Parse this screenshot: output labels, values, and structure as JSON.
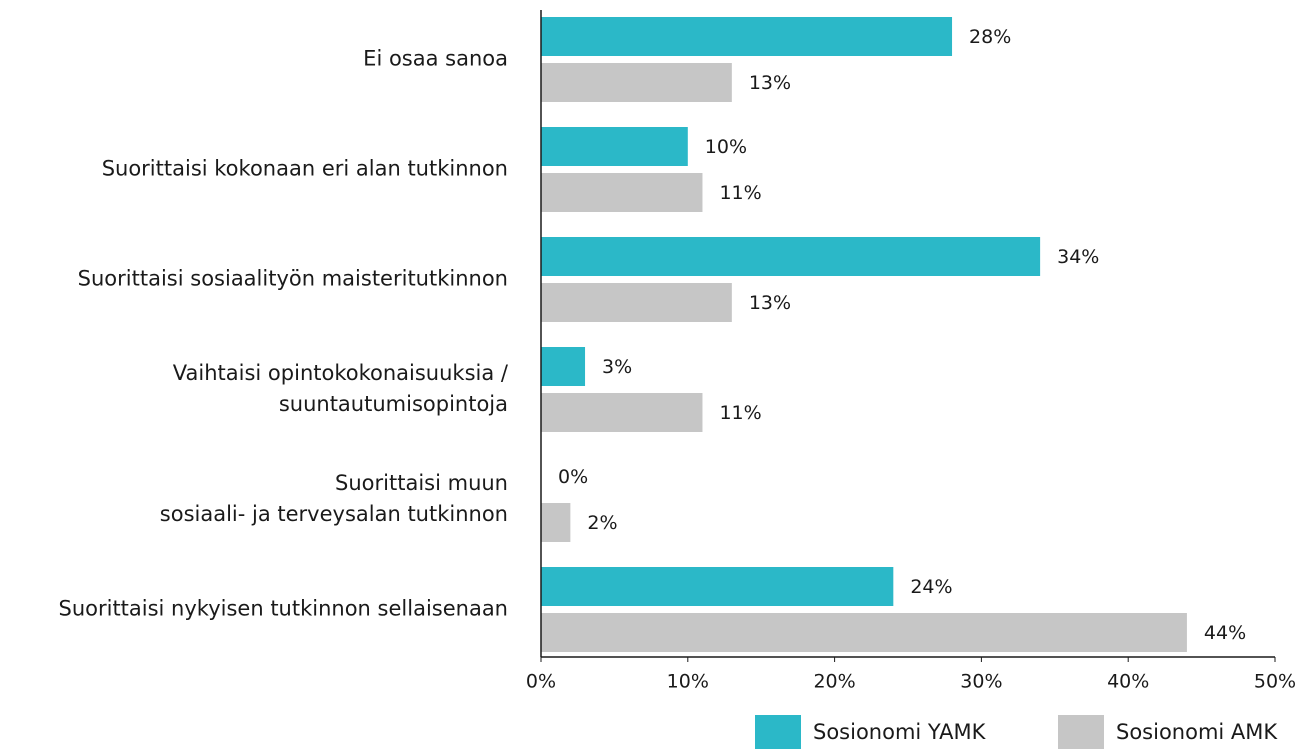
{
  "chart_data": {
    "type": "bar",
    "orientation": "horizontal",
    "categories": [
      "Ei osaa sanoa",
      "Suorittaisi kokonaan eri alan tutkinnon",
      "Suorittaisi sosiaalityön maisteritutkinnon",
      "Vaihtaisi opintokokonaisuuksia /\nsuuntautumisopintoja",
      "Suorittaisi muun\nsosiaali- ja terveysalan tutkinnon",
      "Suorittaisi nykyisen tutkinnon sellaisenaan"
    ],
    "series": [
      {
        "name": "Sosionomi YAMK",
        "color": "#2bb8c8",
        "values": [
          28,
          10,
          34,
          3,
          0,
          24
        ],
        "value_labels": [
          "28%",
          "10%",
          "34%",
          "3%",
          "0%",
          "24%"
        ]
      },
      {
        "name": "Sosionomi AMK",
        "color": "#c6c6c6",
        "values": [
          13,
          11,
          13,
          11,
          2,
          44
        ],
        "value_labels": [
          "13%",
          "11%",
          "13%",
          "11%",
          "2%",
          "44%"
        ]
      }
    ],
    "xlim": [
      0,
      50
    ],
    "xticks": [
      {
        "value": 0,
        "label": "0%"
      },
      {
        "value": 10,
        "label": "10%"
      },
      {
        "value": 20,
        "label": "20%"
      },
      {
        "value": 30,
        "label": "30%"
      },
      {
        "value": 40,
        "label": "40%"
      },
      {
        "value": 50,
        "label": "50%"
      }
    ],
    "legend": "bottom-right"
  }
}
